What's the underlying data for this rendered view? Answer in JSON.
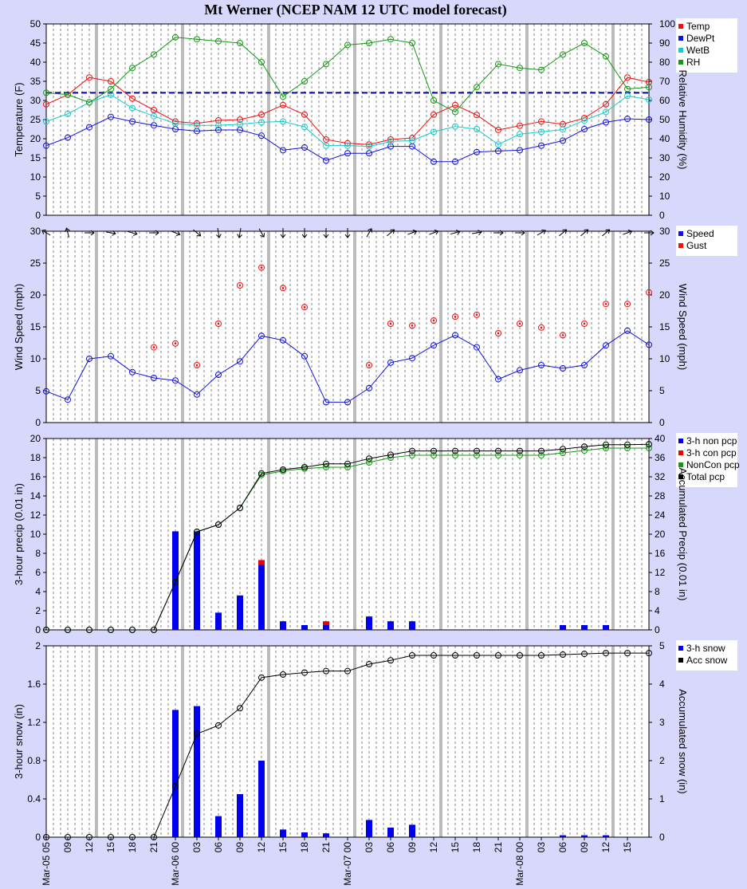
{
  "title": "Mt Werner (NCEP NAM 12 UTC model forecast)",
  "x_tick_labels": [
    "Mar-05 05",
    "09",
    "12",
    "15",
    "18",
    "21",
    "Mar-06 00",
    "03",
    "06",
    "09",
    "12",
    "15",
    "18",
    "21",
    "Mar-07 00",
    "03",
    "06",
    "09",
    "12",
    "15",
    "18",
    "21",
    "Mar-08 00",
    "03",
    "06",
    "09",
    "12",
    "15"
  ],
  "chart_data": [
    {
      "type": "line",
      "ylabel": "Temperature (F)",
      "ylabel_right": "Relative Humidity (%)",
      "ylim": [
        0,
        50
      ],
      "ylim_right": [
        0,
        100
      ],
      "legend": "top-right",
      "reference_line": 32,
      "series": [
        {
          "name": "Temp",
          "color": "#ee1111",
          "axis": "left",
          "values": [
            29,
            31.5,
            36,
            35,
            30.5,
            27.5,
            24.5,
            24,
            24.8,
            25,
            26.3,
            28.8,
            26.3,
            19.8,
            18.8,
            18.5,
            19.8,
            20.2,
            26.3,
            28.8,
            26.2,
            22.3,
            23.4,
            24.5,
            23.8,
            25.4,
            29,
            36,
            34.8
          ]
        },
        {
          "name": "DewPt",
          "color": "#1111dd",
          "axis": "left",
          "values": [
            18.2,
            20.3,
            23,
            25.7,
            24.5,
            23.5,
            22.5,
            22,
            22.3,
            22.3,
            20.8,
            17,
            17.7,
            14.3,
            16.2,
            16.2,
            18,
            18,
            14,
            14,
            16.5,
            16.8,
            17,
            18.2,
            19.5,
            22.5,
            24.3,
            25.2,
            25
          ]
        },
        {
          "name": "WetB",
          "color": "#11cccc",
          "axis": "left",
          "values": [
            24.5,
            26.5,
            29.5,
            31.5,
            28,
            25.9,
            24,
            23.5,
            23.5,
            23.8,
            24.3,
            24.5,
            23.1,
            18.2,
            18.2,
            18,
            19.3,
            19.5,
            21.8,
            23.2,
            22.5,
            18.5,
            21.2,
            21.8,
            22.4,
            24.8,
            27,
            31.2,
            30.2
          ]
        },
        {
          "name": "RH",
          "color": "#119911",
          "axis": "right",
          "values": [
            64,
            63,
            59,
            66,
            77,
            84,
            93,
            92,
            91,
            90,
            80,
            62,
            70,
            79,
            89,
            90,
            92,
            90,
            60,
            54,
            67,
            79,
            77,
            76,
            84,
            90,
            83,
            66,
            67
          ]
        }
      ]
    },
    {
      "type": "line",
      "ylabel": "Wind Speed (mph)",
      "ylabel_right": "Wind Speed (mph)",
      "ylim": [
        0,
        30
      ],
      "ylim_right": [
        0,
        30
      ],
      "legend": "top-right",
      "wind_direction_arrows": true,
      "series": [
        {
          "name": "Speed",
          "color": "#1111dd",
          "values": [
            4.9,
            3.6,
            10,
            10.4,
            7.9,
            7,
            6.6,
            4.4,
            7.5,
            9.6,
            13.6,
            12.9,
            10.4,
            3.2,
            3.2,
            5.4,
            9.4,
            10.1,
            12.1,
            13.7,
            11.8,
            6.8,
            8.2,
            9,
            8.5,
            9,
            12.1,
            14.4,
            12.2
          ]
        },
        {
          "name": "Gust",
          "color": "#ee1111",
          "values": [
            null,
            null,
            null,
            null,
            null,
            11.8,
            12.4,
            9,
            15.5,
            21.5,
            24.3,
            21.1,
            18.1,
            null,
            null,
            9,
            15.5,
            15.2,
            16,
            16.6,
            16.9,
            14,
            15.5,
            14.9,
            13.7,
            15.5,
            18.6,
            18.6,
            20.4
          ]
        }
      ]
    },
    {
      "type": "bar",
      "ylabel": "3-hour precip (0.01 in)",
      "ylabel_right": "Accumulated Precip (0.01 in)",
      "ylim": [
        0,
        20
      ],
      "ylim_right": [
        0,
        40
      ],
      "legend": "top-right",
      "series": [
        {
          "name": "3-h non pcp",
          "color": "#0000ee",
          "kind": "bar",
          "axis": "left",
          "values": [
            0,
            0,
            0,
            0,
            0,
            0,
            10.3,
            10.3,
            1.8,
            3.6,
            6.8,
            0.9,
            0.5,
            0.5,
            0,
            1.4,
            0.9,
            0.9,
            0,
            0,
            0,
            0,
            0,
            0,
            0.5,
            0.5,
            0.5,
            0,
            0
          ]
        },
        {
          "name": "3-h con pcp",
          "color": "#ee0000",
          "kind": "bar",
          "axis": "left",
          "values": [
            0,
            0,
            0,
            0,
            0,
            0,
            0,
            0,
            0,
            0,
            0.5,
            0,
            0,
            0.4,
            0,
            0,
            0,
            0,
            0,
            0,
            0,
            0,
            0,
            0,
            0,
            0,
            0,
            0,
            0
          ]
        },
        {
          "name": "NonCon pcp",
          "color": "#119911",
          "kind": "line",
          "axis": "right",
          "values": [
            0,
            0,
            0,
            0,
            0,
            0,
            10,
            20.5,
            22,
            25.5,
            32.4,
            33.2,
            33.7,
            34,
            34,
            35,
            36,
            36.5,
            36.5,
            36.5,
            36.5,
            36.5,
            36.5,
            36.5,
            37,
            37.5,
            38,
            38,
            38
          ]
        },
        {
          "name": "Total pcp",
          "color": "#000000",
          "kind": "line",
          "axis": "right",
          "values": [
            0,
            0,
            0,
            0,
            0,
            0,
            10,
            20.5,
            22,
            25.5,
            32.7,
            33.5,
            34,
            34.7,
            34.7,
            35.8,
            36.6,
            37.4,
            37.4,
            37.4,
            37.4,
            37.4,
            37.4,
            37.4,
            37.8,
            38.3,
            38.7,
            38.7,
            38.8
          ]
        }
      ]
    },
    {
      "type": "bar",
      "ylabel": "3-hour snow (in)",
      "ylabel_right": "Accumulated snow (in)",
      "ylim": [
        0,
        2
      ],
      "ylim_right": [
        0,
        5
      ],
      "legend": "top-right",
      "series": [
        {
          "name": "3-h snow",
          "color": "#0000ee",
          "kind": "bar",
          "axis": "left",
          "values": [
            0,
            0,
            0,
            0,
            0,
            0,
            1.33,
            1.37,
            0.22,
            0.45,
            0.8,
            0.08,
            0.05,
            0.04,
            0,
            0.18,
            0.1,
            0.13,
            0,
            0,
            0,
            0,
            0,
            0,
            0.02,
            0.02,
            0.02,
            0,
            0
          ]
        },
        {
          "name": "Acc snow",
          "color": "#000000",
          "kind": "line",
          "axis": "right",
          "values": [
            0,
            0,
            0,
            0,
            0,
            0,
            1.33,
            2.7,
            2.92,
            3.37,
            4.17,
            4.25,
            4.3,
            4.34,
            4.34,
            4.52,
            4.62,
            4.75,
            4.75,
            4.75,
            4.75,
            4.75,
            4.75,
            4.75,
            4.77,
            4.79,
            4.81,
            4.81,
            4.81
          ]
        }
      ]
    }
  ]
}
